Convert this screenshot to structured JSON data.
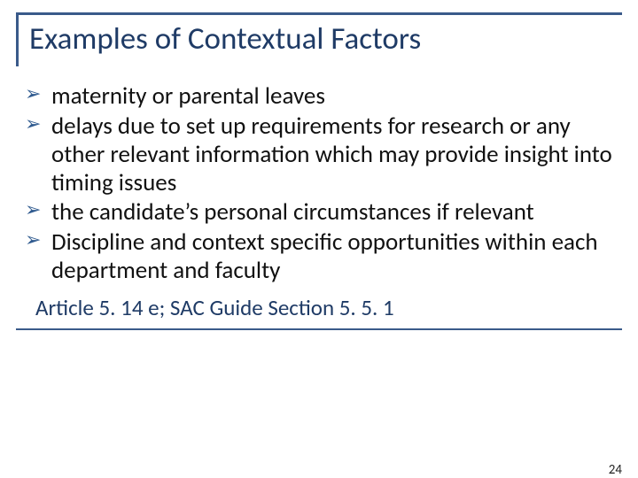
{
  "colors": {
    "accent": "#3a5a8a",
    "title_text": "#1f3b66",
    "body_text": "#111111",
    "bullet_arrow": "#2f5a8f",
    "background": "#ffffff"
  },
  "typography": {
    "title_fontsize_pt": 26,
    "body_fontsize_pt": 20,
    "ref_fontsize_pt": 19,
    "pagenum_fontsize_pt": 11,
    "font_family": "Calibri"
  },
  "title": "Examples of Contextual Factors",
  "bullets": [
    "maternity or parental leaves",
    "delays due to set up requirements for research or any other relevant information which may provide insight into timing issues",
    "the candidate’s personal circumstances if relevant",
    "Discipline and context specific opportunities within each department and faculty"
  ],
  "reference": "Article 5. 14 e; SAC Guide Section 5. 5. 1",
  "page_number": "24"
}
